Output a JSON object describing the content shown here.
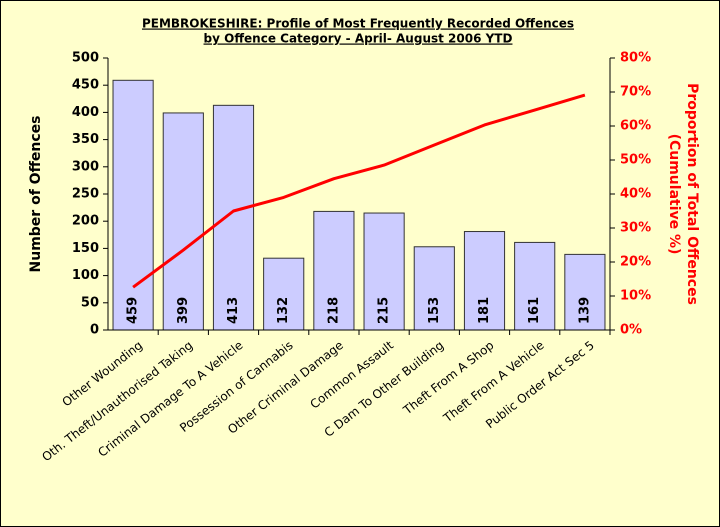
{
  "chart_data": {
    "type": "bar_line",
    "title": [
      "PEMBROKESHIRE: Profile of Most Frequently Recorded Offences",
      "by Offence Category - April- August 2006 YTD"
    ],
    "y_label": "Number of Offences",
    "y2_label": [
      "Proportion of Total Offences",
      "(Cumulative %)"
    ],
    "categories": [
      "Other Wounding",
      "Oth. Theft/Unauthorised Taking",
      "Criminal Damage To A Vehicle",
      "Possession of Cannabis",
      "Other Criminal Damage",
      "Common Assault",
      "C Dam To  Other Building",
      "Theft From A Shop",
      "Theft From A Vehicle",
      "Public Order Act Sec 5"
    ],
    "series": [
      {
        "name": "Number of Offences",
        "color": "#ccccff",
        "values": [
          459,
          399,
          413,
          132,
          218,
          215,
          153,
          181,
          161,
          139
        ]
      },
      {
        "name": "Cumulative %",
        "color": "#ff0000",
        "axis": "y2",
        "values": [
          12.6,
          23.5,
          35,
          39,
          44.5,
          48.5,
          54.4,
          60.3,
          64.7,
          69.1
        ]
      }
    ],
    "ylim": [
      0,
      500
    ],
    "yticks": [
      0,
      50,
      100,
      150,
      200,
      250,
      300,
      350,
      400,
      450,
      500
    ],
    "y2lim": [
      0,
      80
    ],
    "y2ticks": [
      {
        "value": 0,
        "label": "0%"
      },
      {
        "value": 10,
        "label": "10%"
      },
      {
        "value": 20,
        "label": "20%"
      },
      {
        "value": 30,
        "label": "30%"
      },
      {
        "value": 40,
        "label": "40%"
      },
      {
        "value": 50,
        "label": "50%"
      },
      {
        "value": 60,
        "label": "60%"
      },
      {
        "value": 70,
        "label": "70%"
      },
      {
        "value": 80,
        "label": "80%"
      }
    ]
  }
}
